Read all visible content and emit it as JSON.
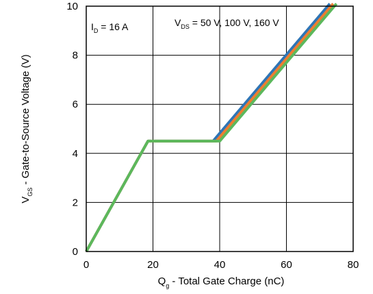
{
  "chart_data": {
    "type": "line",
    "xlabel_main": "Q",
    "xlabel_sub": "g",
    "xlabel_rest": " - Total Gate Charge (nC)",
    "ylabel_main": "V",
    "ylabel_sub": "GS",
    "ylabel_rest": " - Gate-to-Source Voltage (V)",
    "xlim": [
      0,
      80
    ],
    "ylim": [
      0,
      10
    ],
    "xticks": [
      0,
      20,
      40,
      60,
      80
    ],
    "yticks": [
      0,
      2,
      4,
      6,
      8,
      10
    ],
    "grid": true,
    "annotations": {
      "id": {
        "main": "I",
        "sub": "D",
        "rest": " = 16 A"
      },
      "vds": {
        "main": "V",
        "sub": "DS",
        "rest": " = 50 V, 100 V, 160 V"
      }
    },
    "series": [
      {
        "color": "#2e75b6",
        "x": [
          0,
          18.5,
          38.0,
          73.0
        ],
        "y": [
          0,
          4.5,
          4.5,
          10.1
        ]
      },
      {
        "color": "#ed7d31",
        "x": [
          0,
          18.5,
          39.0,
          74.0
        ],
        "y": [
          0,
          4.5,
          4.5,
          10.1
        ]
      },
      {
        "color": "#5cb85c",
        "x": [
          0,
          18.5,
          40.0,
          75.0
        ],
        "y": [
          0,
          4.5,
          4.5,
          10.1
        ]
      }
    ]
  }
}
